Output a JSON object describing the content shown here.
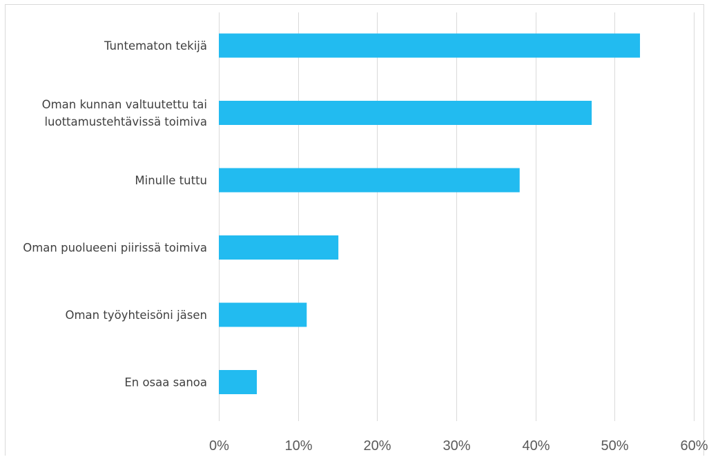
{
  "chart_data": {
    "type": "bar",
    "orientation": "horizontal",
    "categories": [
      [
        "Tuntematon tekijä"
      ],
      [
        "Oman kunnan valtuutettu tai",
        "luottamustehtävissä toimiva"
      ],
      [
        "Minulle tuttu"
      ],
      [
        "Oman puolueeni piirissä toimiva"
      ],
      [
        "Oman työyhteisöni jäsen"
      ],
      [
        "En osaa sanoa"
      ]
    ],
    "values": [
      53.2,
      47.1,
      38.0,
      15.1,
      11.1,
      4.8
    ],
    "unit": "%",
    "xlim": [
      0,
      60
    ],
    "xticks": [
      0,
      10,
      20,
      30,
      40,
      50,
      60
    ],
    "xtick_labels": [
      "0%",
      "10%",
      "20%",
      "30%",
      "40%",
      "50%",
      "60%"
    ],
    "grid": "vertical",
    "bar_color": "#22bbf0",
    "title": "",
    "xlabel": "",
    "ylabel": ""
  }
}
